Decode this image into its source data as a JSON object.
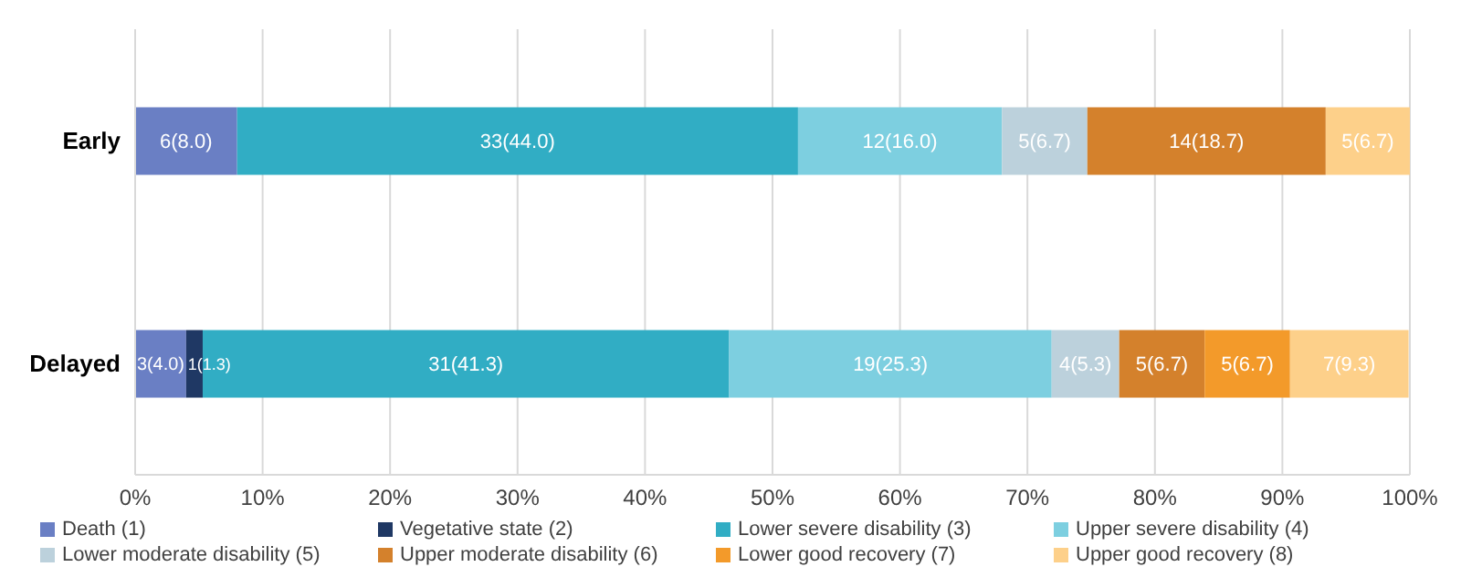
{
  "chart_data": {
    "type": "bar",
    "orientation": "horizontal",
    "stacked": true,
    "categories": [
      "Early",
      "Delayed"
    ],
    "series": [
      {
        "name": "Death (1)",
        "color": "#6a7fc4",
        "values": [
          8.0,
          4.0
        ],
        "value_labels": [
          "6(8.0)",
          "3(4.0)"
        ]
      },
      {
        "name": "Vegetative state (2)",
        "color": "#1f3864",
        "values": [
          0,
          1.3
        ],
        "value_labels": [
          null,
          "1(1.3)"
        ]
      },
      {
        "name": "Lower severe disability (3)",
        "color": "#31adc4",
        "values": [
          44.0,
          41.3
        ],
        "value_labels": [
          "33(44.0)",
          "31(41.3)"
        ]
      },
      {
        "name": "Upper severe disability (4)",
        "color": "#7dcfe0",
        "values": [
          16.0,
          25.3
        ],
        "value_labels": [
          "12(16.0)",
          "19(25.3)"
        ]
      },
      {
        "name": "Lower moderate disability (5)",
        "color": "#bcd1dc",
        "values": [
          6.7,
          5.3
        ],
        "value_labels": [
          "5(6.7)",
          "4(5.3)"
        ]
      },
      {
        "name": "Upper moderate disability (6)",
        "color": "#d4812c",
        "values": [
          18.7,
          6.7
        ],
        "value_labels": [
          "14(18.7)",
          "5(6.7)"
        ]
      },
      {
        "name": "Lower good recovery (7)",
        "color": "#f39a2a",
        "values": [
          0,
          6.7
        ],
        "value_labels": [
          null,
          "5(6.7)"
        ]
      },
      {
        "name": "Upper good recovery (8)",
        "color": "#fdd08a",
        "values": [
          6.7,
          9.3
        ],
        "value_labels": [
          "5(6.7)",
          "7(9.3)"
        ]
      }
    ],
    "xlim": [
      0,
      100
    ],
    "xticks": [
      {
        "value": 0,
        "label": "0%"
      },
      {
        "value": 10,
        "label": "10%"
      },
      {
        "value": 20,
        "label": "20%"
      },
      {
        "value": 30,
        "label": "30%"
      },
      {
        "value": 40,
        "label": "40%"
      },
      {
        "value": 50,
        "label": "50%"
      },
      {
        "value": 60,
        "label": "60%"
      },
      {
        "value": 70,
        "label": "70%"
      },
      {
        "value": 80,
        "label": "80%"
      },
      {
        "value": 90,
        "label": "90%"
      },
      {
        "value": 100,
        "label": "100%"
      }
    ],
    "grid": "x",
    "legend": "bottom"
  }
}
